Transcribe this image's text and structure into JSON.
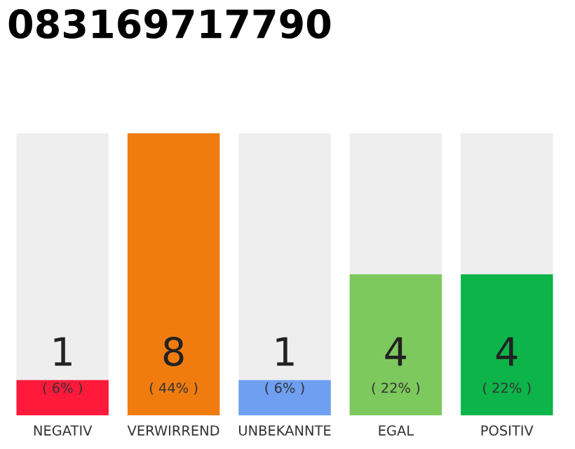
{
  "chart_data": {
    "type": "bar",
    "title": "083169717790",
    "categories": [
      "NEGATIV",
      "VERWIRREND",
      "UNBEKANNTE",
      "EGAL",
      "POSITIV"
    ],
    "values": [
      1,
      8,
      1,
      4,
      4
    ],
    "colors": [
      "#ff1a3c",
      "#f07c10",
      "#6f9ff0",
      "#7dc95e",
      "#0cb44a"
    ],
    "data_labels": true,
    "grid": false,
    "annotations": [
      "( 6% )",
      "( 44% )",
      "( 6% )",
      "( 22% )",
      "( 22% )"
    ]
  }
}
